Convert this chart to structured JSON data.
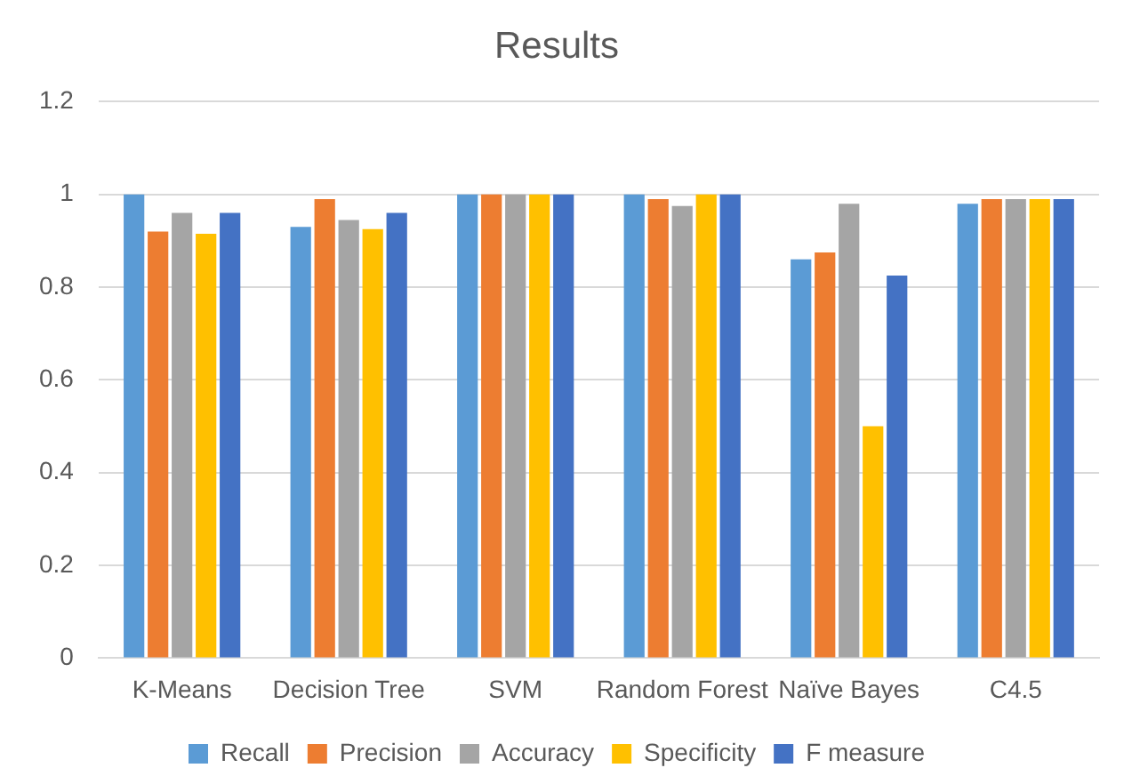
{
  "chart_data": {
    "type": "bar",
    "title": "Results",
    "categories": [
      "K-Means",
      "Decision Tree",
      "SVM",
      "Random Forest",
      "Naïve Bayes",
      "C4.5"
    ],
    "series": [
      {
        "name": "Recall",
        "color": "#5b9bd5",
        "values": [
          1,
          0.93,
          1,
          1,
          0.86,
          0.98
        ]
      },
      {
        "name": "Precision",
        "color": "#ed7d31",
        "values": [
          0.92,
          0.99,
          1,
          0.99,
          0.875,
          0.99
        ]
      },
      {
        "name": "Accuracy",
        "color": "#a5a5a5",
        "values": [
          0.96,
          0.945,
          1,
          0.975,
          0.98,
          0.99
        ]
      },
      {
        "name": "Specificity",
        "color": "#ffc000",
        "values": [
          0.915,
          0.925,
          1,
          1,
          0.5,
          0.99
        ]
      },
      {
        "name": "F measure",
        "color": "#4472c4",
        "values": [
          0.96,
          0.96,
          1,
          1,
          0.825,
          0.99
        ]
      }
    ],
    "ylim": [
      0,
      1.2
    ],
    "yticks": [
      0,
      0.2,
      0.4,
      0.6,
      0.8,
      1,
      1.2
    ],
    "grid": "y",
    "legend": "bottom"
  }
}
